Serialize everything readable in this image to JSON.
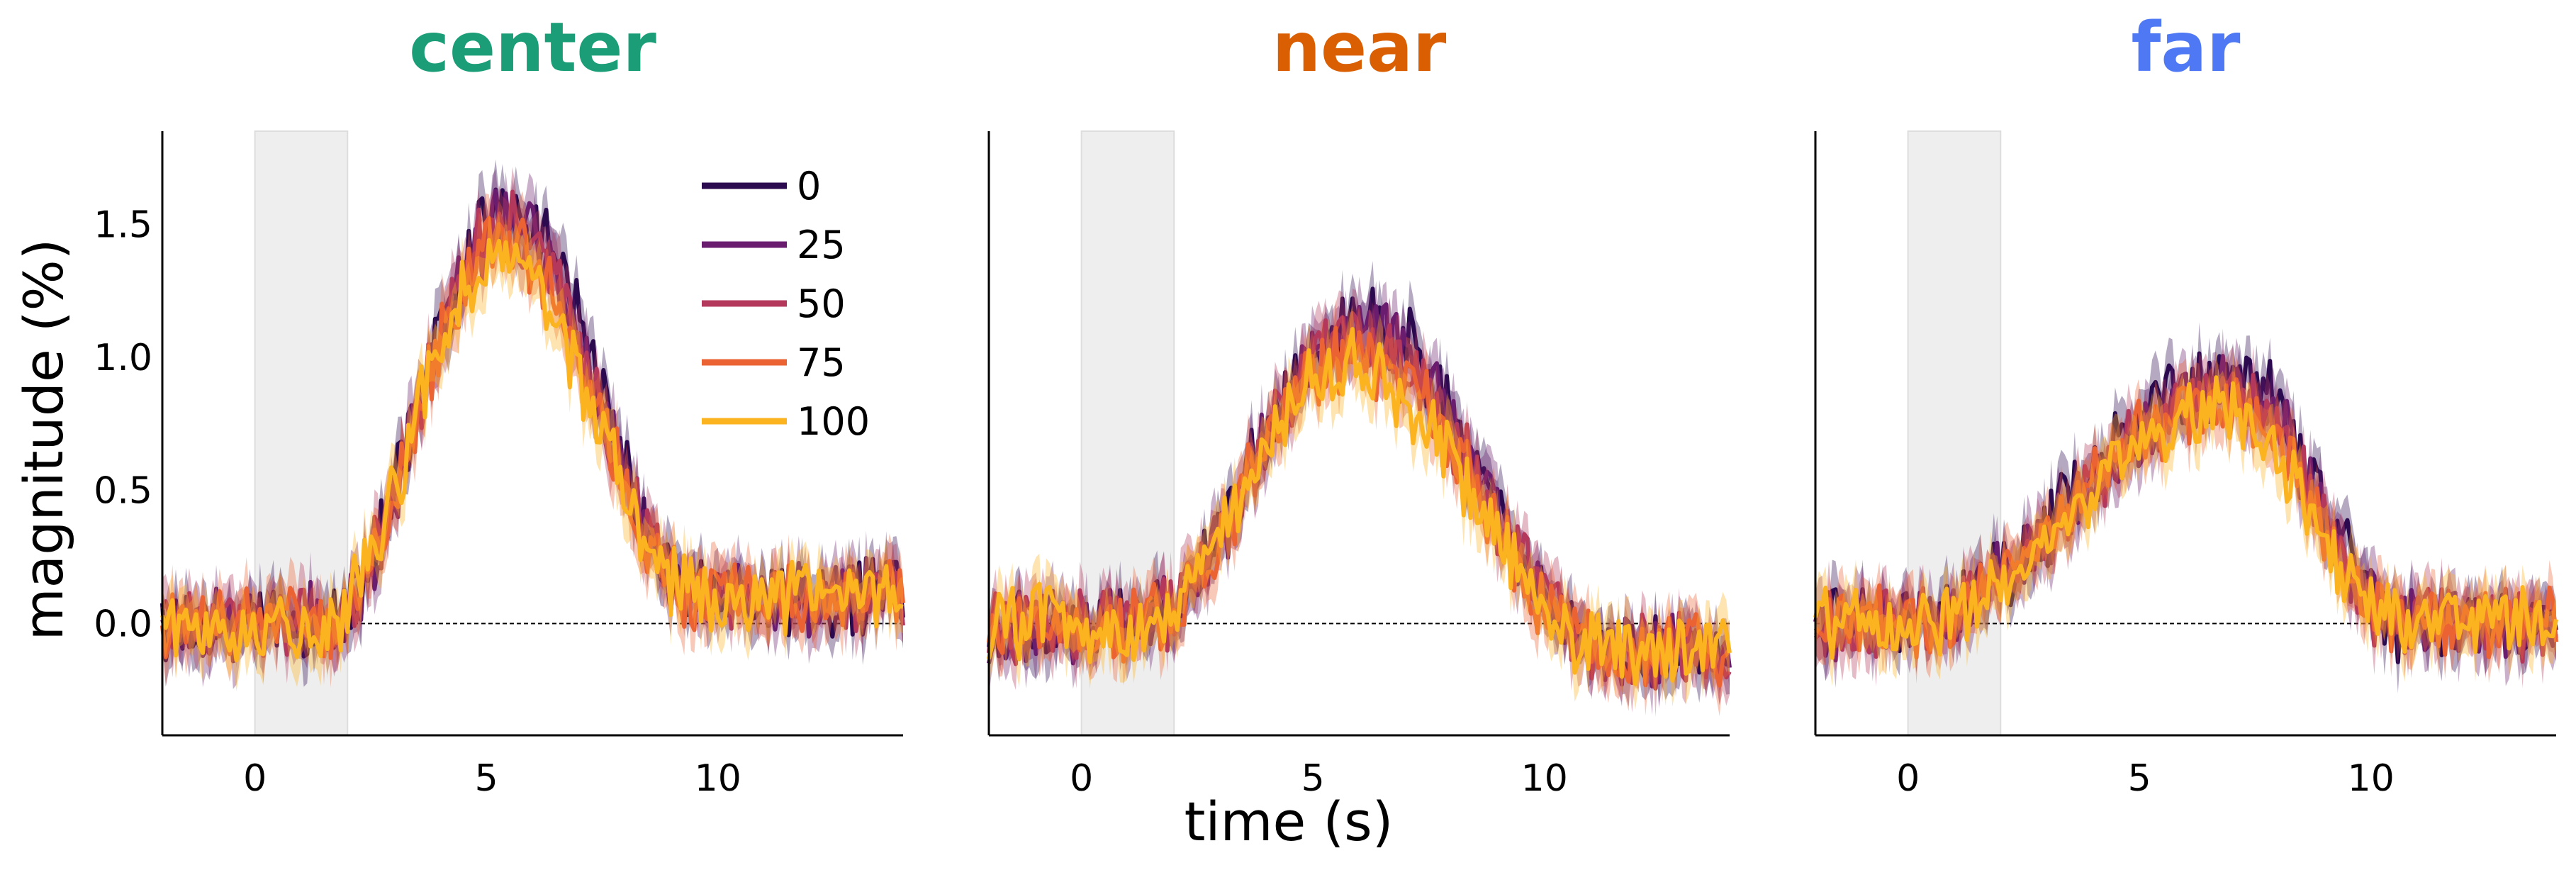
{
  "figure": {
    "ylabel": "magnitude (%)",
    "xlabel": "time (s)",
    "legend_title": "",
    "colors": {
      "center": "#1b9e77",
      "near": "#d95f02",
      "far": "#4f78f4",
      "stim_shade": "#eeeeee",
      "zero_line": "#000000"
    }
  },
  "legend": {
    "placement": "upper-right of first panel",
    "items": [
      {
        "label": "0",
        "color": "#2c0a4f"
      },
      {
        "label": "25",
        "color": "#6a1c6e"
      },
      {
        "label": "50",
        "color": "#b3385c"
      },
      {
        "label": "75",
        "color": "#eb6233"
      },
      {
        "label": "100",
        "color": "#fbb320"
      }
    ]
  },
  "chart_data": [
    {
      "type": "line",
      "title": "center",
      "xlim": [
        -2,
        14
      ],
      "ylim": [
        -0.42,
        1.85
      ],
      "xticks": [
        0,
        5,
        10
      ],
      "yticks": [
        0.0,
        0.5,
        1.0,
        1.5
      ],
      "ytick_labels": [
        "0.0",
        "0.5",
        "1.0",
        "1.5"
      ],
      "stim_window": [
        0,
        2
      ],
      "series": [
        {
          "name": "0",
          "peak": 1.56,
          "peak_t": 5.5
        },
        {
          "name": "25",
          "peak": 1.52,
          "peak_t": 5.5
        },
        {
          "name": "50",
          "peak": 1.48,
          "peak_t": 5.4
        },
        {
          "name": "75",
          "peak": 1.44,
          "peak_t": 5.3
        },
        {
          "name": "100",
          "peak": 1.38,
          "peak_t": 5.2
        }
      ],
      "onset_t": 1.5,
      "fall_end_t": 9.6,
      "tail": 0.1
    },
    {
      "type": "line",
      "title": "near",
      "xlim": [
        -2,
        14
      ],
      "ylim": [
        -0.42,
        1.85
      ],
      "xticks": [
        0,
        5,
        10
      ],
      "yticks": [
        0.0,
        0.5,
        1.0,
        1.5
      ],
      "ytick_labels": [
        "",
        "",
        "",
        ""
      ],
      "stim_window": [
        0,
        2
      ],
      "series": [
        {
          "name": "0",
          "peak": 1.15,
          "peak_t": 6.0
        },
        {
          "name": "25",
          "peak": 1.1,
          "peak_t": 6.0
        },
        {
          "name": "50",
          "peak": 1.06,
          "peak_t": 5.9
        },
        {
          "name": "75",
          "peak": 1.02,
          "peak_t": 5.8
        },
        {
          "name": "100",
          "peak": 0.97,
          "peak_t": 5.7
        }
      ],
      "onset_t": 1.2,
      "fall_end_t": 11.5,
      "tail": -0.1
    },
    {
      "type": "line",
      "title": "far",
      "xlim": [
        -2,
        14
      ],
      "ylim": [
        -0.42,
        1.85
      ],
      "xticks": [
        0,
        5,
        10
      ],
      "yticks": [
        0.0,
        0.5,
        1.0,
        1.5
      ],
      "ytick_labels": [
        "",
        "",
        "",
        ""
      ],
      "stim_window": [
        0,
        2
      ],
      "series": [
        {
          "name": "0",
          "peak": 0.93,
          "peak_t": 7.0
        },
        {
          "name": "25",
          "peak": 0.9,
          "peak_t": 7.0
        },
        {
          "name": "50",
          "peak": 0.87,
          "peak_t": 6.9
        },
        {
          "name": "75",
          "peak": 0.84,
          "peak_t": 6.8
        },
        {
          "name": "100",
          "peak": 0.8,
          "peak_t": 6.8
        }
      ],
      "onset_t": 0.0,
      "fall_end_t": 10.8,
      "tail": 0.0
    }
  ]
}
